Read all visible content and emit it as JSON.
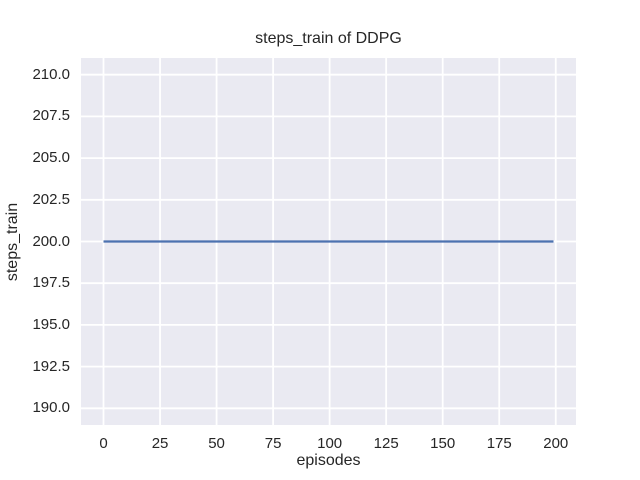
{
  "chart_data": {
    "type": "line",
    "title": "steps_train of DDPG",
    "xlabel": "episodes",
    "ylabel": "steps_train",
    "series": [
      {
        "name": "steps_train",
        "color": "#4C72B0",
        "x": [
          0,
          199
        ],
        "y": [
          200,
          200
        ],
        "description": "constant horizontal line at steps_train = 200 for episodes 0 through 199"
      }
    ],
    "xlim": [
      -9.95,
      208.95
    ],
    "ylim": [
      189,
      211
    ],
    "x_ticks": [
      {
        "value": 0,
        "label": "0"
      },
      {
        "value": 25,
        "label": "25"
      },
      {
        "value": 50,
        "label": "50"
      },
      {
        "value": 75,
        "label": "75"
      },
      {
        "value": 100,
        "label": "100"
      },
      {
        "value": 125,
        "label": "125"
      },
      {
        "value": 150,
        "label": "150"
      },
      {
        "value": 175,
        "label": "175"
      },
      {
        "value": 200,
        "label": "200"
      }
    ],
    "y_ticks": [
      {
        "value": 190.0,
        "label": "190.0"
      },
      {
        "value": 192.5,
        "label": "192.5"
      },
      {
        "value": 195.0,
        "label": "195.0"
      },
      {
        "value": 197.5,
        "label": "197.5"
      },
      {
        "value": 200.0,
        "label": "200.0"
      },
      {
        "value": 202.5,
        "label": "202.5"
      },
      {
        "value": 205.0,
        "label": "205.0"
      },
      {
        "value": 207.5,
        "label": "207.5"
      },
      {
        "value": 210.0,
        "label": "210.0"
      }
    ],
    "grid": "on",
    "legend": "none",
    "plot_background_color": "#EAEAF2",
    "grid_color": "#FFFFFF",
    "text_color": "#262626",
    "figure_background_color": "#FFFFFF"
  }
}
